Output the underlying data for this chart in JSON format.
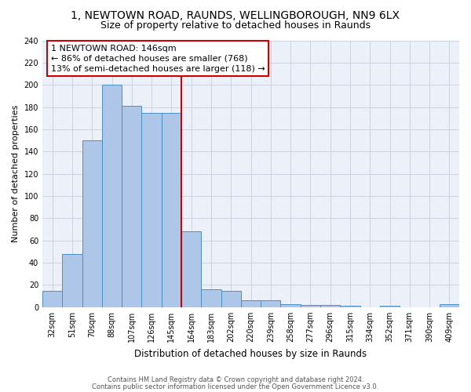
{
  "title1": "1, NEWTOWN ROAD, RAUNDS, WELLINGBOROUGH, NN9 6LX",
  "title2": "Size of property relative to detached houses in Raunds",
  "xlabel": "Distribution of detached houses by size in Raunds",
  "ylabel": "Number of detached properties",
  "categories": [
    "32sqm",
    "51sqm",
    "70sqm",
    "88sqm",
    "107sqm",
    "126sqm",
    "145sqm",
    "164sqm",
    "183sqm",
    "202sqm",
    "220sqm",
    "239sqm",
    "258sqm",
    "277sqm",
    "296sqm",
    "315sqm",
    "334sqm",
    "352sqm",
    "371sqm",
    "390sqm",
    "409sqm"
  ],
  "values": [
    15,
    48,
    150,
    200,
    181,
    175,
    175,
    68,
    16,
    15,
    6,
    6,
    3,
    2,
    2,
    1,
    0,
    1,
    0,
    0,
    3
  ],
  "bar_color": "#aec6e8",
  "bar_edge_color": "#4a90c4",
  "vline_index": 6.5,
  "vline_color": "#cc0000",
  "annotation_line1": "1 NEWTOWN ROAD: 146sqm",
  "annotation_line2": "← 86% of detached houses are smaller (768)",
  "annotation_line3": "13% of semi-detached houses are larger (118) →",
  "annotation_box_color": "#ffffff",
  "annotation_box_edge": "#cc0000",
  "ylim": [
    0,
    240
  ],
  "yticks": [
    0,
    20,
    40,
    60,
    80,
    100,
    120,
    140,
    160,
    180,
    200,
    220,
    240
  ],
  "footer1": "Contains HM Land Registry data © Crown copyright and database right 2024.",
  "footer2": "Contains public sector information licensed under the Open Government Licence v3.0.",
  "bg_color": "#ecf0f8",
  "title1_fontsize": 10,
  "title2_fontsize": 9,
  "xlabel_fontsize": 8.5,
  "ylabel_fontsize": 8,
  "tick_fontsize": 7,
  "footer_fontsize": 6,
  "annot_fontsize": 8
}
